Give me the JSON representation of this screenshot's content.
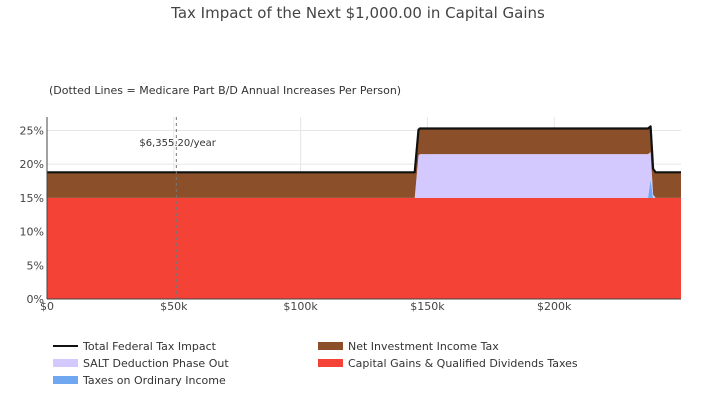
{
  "chart_data": {
    "type": "area",
    "title": "Tax Impact of the Next $1,000.00 in Capital Gains",
    "subtitle": "(Dotted Lines = Medicare Part B/D Annual Increases Per Person)",
    "xlabel": "",
    "ylabel": "",
    "xlim": [
      0,
      250000
    ],
    "ylim": [
      0,
      0.27
    ],
    "x_ticks": [
      {
        "value": 0,
        "label": "$0"
      },
      {
        "value": 50000,
        "label": "$50k"
      },
      {
        "value": 100000,
        "label": "$100k"
      },
      {
        "value": 150000,
        "label": "$150k"
      },
      {
        "value": 200000,
        "label": "$200k"
      }
    ],
    "y_ticks": [
      {
        "value": 0,
        "label": "0%"
      },
      {
        "value": 0.05,
        "label": "5%"
      },
      {
        "value": 0.1,
        "label": "10%"
      },
      {
        "value": 0.15,
        "label": "15%"
      },
      {
        "value": 0.2,
        "label": "20%"
      },
      {
        "value": 0.25,
        "label": "25%"
      }
    ],
    "grid": true,
    "legend_position": "bottom",
    "x": [
      0,
      145000,
      146500,
      147000,
      236000,
      237000,
      238000,
      239000,
      240000,
      250000
    ],
    "series": [
      {
        "name": "Capital Gains & Qualified Dividends Taxes",
        "color": "#f44336",
        "values": [
          0.15,
          0.15,
          0.15,
          0.15,
          0.15,
          0.15,
          0.15,
          0.15,
          0.15,
          0.15
        ]
      },
      {
        "name": "Taxes on Ordinary Income",
        "color": "#6fa8f0",
        "values": [
          0,
          0,
          0,
          0,
          0,
          0,
          0.028,
          0,
          0,
          0
        ]
      },
      {
        "name": "SALT Deduction Phase Out",
        "color": "#d4c9ff",
        "values": [
          0,
          0,
          0.063,
          0.065,
          0.065,
          0.065,
          0.04,
          0.005,
          0,
          0
        ]
      },
      {
        "name": "Net Investment Income Tax",
        "color": "#8b4f2a",
        "values": [
          0.038,
          0.038,
          0.038,
          0.038,
          0.038,
          0.038,
          0.038,
          0.038,
          0.038,
          0.038
        ]
      },
      {
        "name": "Total Federal Tax Impact",
        "color": "#111111",
        "values": [
          0.188,
          0.188,
          0.251,
          0.253,
          0.253,
          0.253,
          0.256,
          0.193,
          0.188,
          0.188
        ]
      }
    ],
    "medicare_lines": [
      {
        "x": 51000,
        "label": "$6,355.20/year"
      }
    ],
    "legend": [
      {
        "name": "Total Federal Tax Impact",
        "color": "#111111",
        "kind": "line"
      },
      {
        "name": "Net Investment Income Tax",
        "color": "#8b4f2a",
        "kind": "fill"
      },
      {
        "name": "SALT Deduction Phase Out",
        "color": "#d4c9ff",
        "kind": "fill"
      },
      {
        "name": "Capital Gains & Qualified Dividends Taxes",
        "color": "#f44336",
        "kind": "fill"
      },
      {
        "name": "Taxes on Ordinary Income",
        "color": "#6fa8f0",
        "kind": "fill"
      }
    ]
  }
}
